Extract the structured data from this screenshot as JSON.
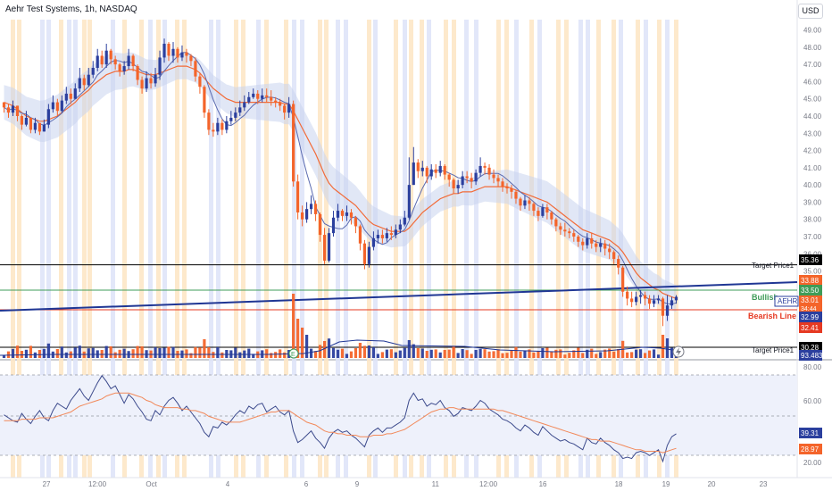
{
  "header": {
    "title": "Aehr Test Systems, 1h, NASDAQ",
    "currency": "USD"
  },
  "colors": {
    "up": "#2b3f9e",
    "down": "#f4642a",
    "ema": "#f26b38",
    "sma": "#5b6bb0",
    "band_fill": "#c9d4ee",
    "stripe_orange": "#fde7c6",
    "stripe_blue": "#dfe4f8",
    "rsi_line": "#3c4a8c",
    "rsi_ma": "#f2895a",
    "rsi_bg": "#eef1fb",
    "trend_blue": "#1f3694",
    "bullish_green": "#3f9c58",
    "bearish_red": "#e63922",
    "black": "#000000"
  },
  "chart_data": {
    "type": "candlestick",
    "symbol": "AEHR",
    "timeframe": "1h",
    "ylim": [
      30.0,
      49.6
    ],
    "price_ticks": [
      "49.00",
      "48.00",
      "47.00",
      "46.00",
      "45.00",
      "44.00",
      "43.00",
      "42.00",
      "41.00",
      "40.00",
      "39.00",
      "38.00",
      "37.00",
      "36.00",
      "35.00",
      "31.00"
    ],
    "x_ticks": [
      "27",
      "12:00",
      "Oct",
      "4",
      "6",
      "9",
      "11",
      "12:00",
      "16",
      "18",
      "19",
      "20",
      "23"
    ],
    "closes": [
      44.5,
      44.2,
      44.6,
      44.0,
      43.5,
      43.9,
      43.2,
      43.6,
      43.1,
      43.5,
      44.4,
      44.8,
      44.3,
      44.9,
      45.3,
      45.0,
      45.6,
      46.2,
      45.8,
      46.4,
      46.8,
      47.5,
      47.0,
      47.8,
      47.3,
      47.0,
      46.6,
      46.9,
      47.5,
      46.9,
      46.1,
      45.6,
      46.2,
      45.9,
      46.4,
      47.4,
      48.2,
      47.5,
      47.9,
      47.4,
      47.7,
      47.5,
      47.2,
      46.3,
      45.7,
      44.2,
      43.2,
      43.1,
      43.6,
      43.2,
      43.7,
      43.9,
      44.2,
      44.5,
      44.8,
      45.1,
      45.3,
      45.0,
      45.2,
      45.1,
      44.9,
      44.8,
      44.6,
      44.2,
      44.7,
      40.2,
      38.4,
      38.0,
      38.6,
      38.9,
      38.3,
      37.1,
      35.6,
      37.2,
      38.1,
      38.5,
      38.2,
      38.4,
      38.1,
      37.6,
      36.6,
      35.4,
      36.4,
      36.9,
      37.1,
      36.9,
      37.2,
      37.1,
      37.4,
      37.7,
      38.1,
      40.0,
      41.3,
      40.8,
      41.0,
      40.5,
      40.9,
      40.7,
      41.1,
      40.6,
      40.3,
      39.8,
      40.0,
      40.5,
      40.4,
      40.2,
      40.7,
      41.1,
      41.0,
      40.6,
      40.4,
      40.2,
      39.9,
      39.8,
      39.6,
      39.2,
      38.8,
      39.1,
      38.9,
      38.5,
      38.2,
      38.7,
      38.4,
      38.0,
      37.6,
      37.4,
      37.3,
      37.2,
      37.0,
      36.7,
      36.5,
      36.9,
      36.6,
      36.4,
      36.6,
      36.3,
      36.1,
      35.7,
      35.2,
      33.8,
      33.4,
      33.2,
      33.5,
      33.6,
      33.4,
      33.1,
      33.3,
      33.4,
      32.4,
      33.0,
      33.3,
      33.5
    ],
    "highs": [
      44.8,
      44.7,
      44.9,
      44.6,
      44.1,
      44.3,
      43.9,
      43.9,
      43.6,
      43.8,
      44.7,
      45.2,
      45.0,
      45.2,
      45.7,
      45.6,
      45.9,
      46.8,
      46.4,
      46.8,
      47.2,
      47.9,
      47.8,
      48.2,
      47.9,
      47.5,
      47.1,
      47.2,
      47.9,
      47.6,
      47.0,
      46.3,
      46.6,
      46.5,
      46.8,
      47.8,
      48.5,
      48.3,
      48.3,
      48.0,
      48.1,
      47.9,
      47.6,
      47.4,
      46.5,
      45.8,
      44.4,
      43.6,
      43.9,
      43.8,
      44.0,
      44.3,
      44.5,
      44.9,
      45.2,
      45.4,
      45.6,
      45.5,
      45.6,
      45.6,
      45.5,
      45.1,
      45.0,
      44.7,
      45.1,
      44.9,
      40.6,
      38.8,
      39.0,
      39.4,
      39.1,
      38.4,
      37.5,
      37.5,
      38.5,
      38.9,
      38.6,
      38.8,
      38.6,
      38.2,
      37.7,
      36.8,
      36.7,
      37.3,
      37.4,
      37.4,
      37.5,
      37.6,
      37.7,
      38.0,
      38.5,
      41.6,
      42.2,
      41.5,
      41.4,
      41.1,
      41.2,
      41.2,
      41.4,
      41.2,
      40.7,
      40.4,
      40.3,
      40.8,
      40.8,
      40.7,
      40.9,
      41.6,
      41.3,
      41.2,
      40.9,
      40.6,
      40.4,
      40.1,
      40.0,
      39.7,
      39.3,
      39.4,
      39.3,
      39.0,
      38.7,
      38.9,
      38.9,
      38.5,
      38.1,
      37.8,
      37.8,
      37.5,
      37.4,
      37.1,
      36.9,
      37.2,
      37.2,
      36.8,
      36.9,
      36.8,
      36.6,
      36.2,
      35.9,
      35.3,
      34.1,
      33.8,
      33.8,
      33.9,
      33.8,
      33.6,
      33.6,
      33.6,
      33.5,
      33.6,
      33.5,
      33.6
    ],
    "lows": [
      44.2,
      43.9,
      44.0,
      43.7,
      43.2,
      43.4,
      43.0,
      43.0,
      42.9,
      43.1,
      43.3,
      44.2,
      44.0,
      44.2,
      44.7,
      44.7,
      45.0,
      45.4,
      45.5,
      45.7,
      46.2,
      46.6,
      46.8,
      46.8,
      47.0,
      46.7,
      46.3,
      46.4,
      46.7,
      46.6,
      45.8,
      45.3,
      45.4,
      45.6,
      45.7,
      46.1,
      47.1,
      47.2,
      47.1,
      47.1,
      47.2,
      47.1,
      46.9,
      46.0,
      45.3,
      43.9,
      42.9,
      42.8,
      42.9,
      42.9,
      43.0,
      43.5,
      43.7,
      44.0,
      44.3,
      44.7,
      45.0,
      44.7,
      44.8,
      44.8,
      44.6,
      44.5,
      44.3,
      43.8,
      43.9,
      39.9,
      38.0,
      37.6,
      37.8,
      38.3,
      37.9,
      36.7,
      35.4,
      35.5,
      37.0,
      37.9,
      37.9,
      37.9,
      37.7,
      37.2,
      36.2,
      35.1,
      35.2,
      36.2,
      36.6,
      36.6,
      36.7,
      36.8,
      36.9,
      37.2,
      37.6,
      38.0,
      40.0,
      40.4,
      40.5,
      40.1,
      40.3,
      40.4,
      40.5,
      40.3,
      39.9,
      39.5,
      39.5,
      39.8,
      40.1,
      39.8,
      40.0,
      40.5,
      40.6,
      40.3,
      40.1,
      39.9,
      39.6,
      39.5,
      39.2,
      38.9,
      38.5,
      38.6,
      38.5,
      38.2,
      37.9,
      38.1,
      38.0,
      37.7,
      37.3,
      37.1,
      37.0,
      36.9,
      36.7,
      36.4,
      36.2,
      36.3,
      36.3,
      36.1,
      36.1,
      35.9,
      35.7,
      35.4,
      34.8,
      33.5,
      33.0,
      32.9,
      33.0,
      33.1,
      33.0,
      32.8,
      32.9,
      33.1,
      31.8,
      32.1,
      32.8,
      33.1
    ],
    "ema_line": [
      44.8,
      44.7,
      44.6,
      44.4,
      44.2,
      44.0,
      43.9,
      43.8,
      43.7,
      43.7,
      43.8,
      43.9,
      44.0,
      44.2,
      44.4,
      44.6,
      44.8,
      45.1,
      45.3,
      45.5,
      45.8,
      46.0,
      46.2,
      46.4,
      46.5,
      46.6,
      46.6,
      46.6,
      46.7,
      46.7,
      46.6,
      46.5,
      46.4,
      46.4,
      46.4,
      46.5,
      46.6,
      46.7,
      46.8,
      46.9,
      46.9,
      46.9,
      46.8,
      46.7,
      46.5,
      46.2,
      45.9,
      45.6,
      45.4,
      45.2,
      45.0,
      44.9,
      44.8,
      44.8,
      44.8,
      44.8,
      44.8,
      44.8,
      44.8,
      44.8,
      44.8,
      44.8,
      44.8,
      44.7,
      44.7,
      44.3,
      43.8,
      43.3,
      42.8,
      42.3,
      41.8,
      41.2,
      40.6,
      40.1,
      39.8,
      39.6,
      39.4,
      39.2,
      39.0,
      38.8,
      38.5,
      38.2,
      37.9,
      37.7,
      37.6,
      37.5,
      37.4,
      37.3,
      37.3,
      37.3,
      37.3,
      37.5,
      37.8,
      38.1,
      38.4,
      38.6,
      38.8,
      39.0,
      39.2,
      39.3,
      39.4,
      39.5,
      39.5,
      39.6,
      39.6,
      39.6,
      39.7,
      39.8,
      39.9,
      39.9,
      39.9,
      39.9,
      39.9,
      39.9,
      39.8,
      39.7,
      39.6,
      39.5,
      39.4,
      39.3,
      39.2,
      39.1,
      39.0,
      38.8,
      38.6,
      38.4,
      38.2,
      38.0,
      37.8,
      37.6,
      37.4,
      37.3,
      37.2,
      37.1,
      37.0,
      36.9,
      36.8,
      36.6,
      36.4,
      36.1,
      35.7,
      35.3,
      34.9,
      34.6,
      34.4,
      34.2,
      34.0,
      33.9,
      33.7,
      33.6,
      33.5,
      33.4
    ]
  },
  "labels": {
    "target1": "Target Price1",
    "target2": "Target Price1",
    "bullish": "Bullish",
    "bearish": "Bearish Line",
    "ticker": "AEHR",
    "countdown": "34:44"
  },
  "price_tags": {
    "t1": "35.36",
    "red_top": "33.88",
    "green": "33.50",
    "last": "33.01",
    "blue": "32.99",
    "red_low": "32.41",
    "t2": "30.28",
    "vol": "93.483K"
  },
  "rsi": {
    "ticks": [
      "80.00",
      "60.00",
      "20.00"
    ],
    "value": "39.31",
    "ma_value": "28.97",
    "values": [
      52,
      50,
      48,
      47,
      53,
      49,
      46,
      51,
      55,
      50,
      48,
      55,
      60,
      58,
      56,
      62,
      66,
      70,
      65,
      62,
      68,
      74,
      79,
      75,
      70,
      72,
      66,
      60,
      66,
      63,
      58,
      54,
      49,
      48,
      55,
      52,
      58,
      62,
      64,
      60,
      55,
      58,
      54,
      50,
      46,
      40,
      37,
      44,
      43,
      47,
      45,
      48,
      52,
      55,
      53,
      58,
      56,
      59,
      60,
      54,
      56,
      58,
      54,
      52,
      55,
      41,
      33,
      35,
      38,
      41,
      36,
      33,
      29,
      36,
      40,
      42,
      40,
      41,
      38,
      36,
      33,
      30,
      38,
      41,
      43,
      40,
      43,
      43,
      45,
      47,
      50,
      62,
      67,
      62,
      63,
      58,
      60,
      59,
      62,
      57,
      55,
      51,
      53,
      57,
      56,
      55,
      58,
      62,
      60,
      56,
      54,
      52,
      49,
      48,
      46,
      43,
      41,
      45,
      43,
      40,
      38,
      44,
      41,
      38,
      36,
      34,
      35,
      33,
      32,
      30,
      28,
      36,
      33,
      32,
      36,
      33,
      31,
      28,
      26,
      22,
      23,
      22,
      26,
      27,
      26,
      24,
      26,
      28,
      20,
      31,
      37,
      39
    ],
    "ma_values": [
      48,
      48,
      48,
      48,
      49,
      49,
      49,
      49,
      50,
      50,
      50,
      50,
      51,
      52,
      53,
      54,
      56,
      58,
      59,
      60,
      61,
      62,
      63,
      65,
      66,
      67,
      67,
      67,
      67,
      66,
      65,
      64,
      62,
      61,
      59,
      58,
      57,
      57,
      57,
      57,
      56,
      56,
      55,
      55,
      54,
      53,
      51,
      50,
      49,
      48,
      47,
      47,
      47,
      47,
      48,
      49,
      50,
      51,
      52,
      53,
      54,
      54,
      55,
      55,
      55,
      53,
      51,
      49,
      47,
      46,
      45,
      43,
      41,
      40,
      40,
      39,
      39,
      38,
      38,
      38,
      37,
      37,
      37,
      38,
      38,
      38,
      39,
      39,
      40,
      41,
      42,
      44,
      46,
      48,
      50,
      52,
      54,
      55,
      56,
      56,
      57,
      57,
      56,
      56,
      56,
      56,
      56,
      56,
      56,
      56,
      56,
      55,
      55,
      54,
      53,
      52,
      51,
      50,
      49,
      48,
      47,
      46,
      45,
      44,
      43,
      42,
      41,
      40,
      39,
      38,
      37,
      36,
      35,
      35,
      34,
      34,
      34,
      33,
      32,
      31,
      30,
      29,
      28,
      28,
      27,
      27,
      27,
      27,
      26,
      27,
      28,
      29
    ]
  },
  "volume": {
    "ytick_label": "93.483K"
  },
  "markers": {
    "earnings_letter": "E"
  }
}
